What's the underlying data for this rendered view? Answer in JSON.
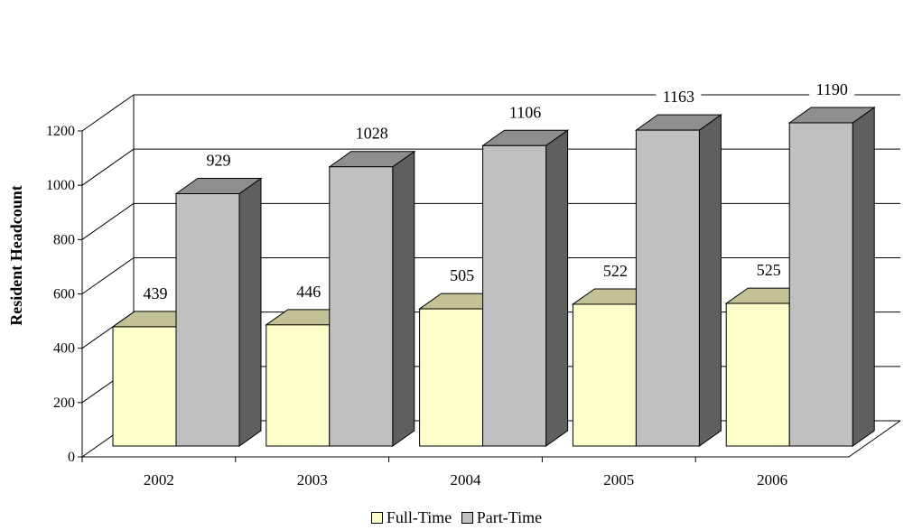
{
  "chart_data": {
    "type": "bar",
    "three_d": true,
    "categories": [
      "2002",
      "2003",
      "2004",
      "2005",
      "2006"
    ],
    "series": [
      {
        "name": "Full-Time",
        "values": [
          439,
          446,
          505,
          522,
          525
        ],
        "color": "#FFFFCC",
        "top_color": "#C2C296"
      },
      {
        "name": "Part-Time",
        "values": [
          929,
          1028,
          1106,
          1163,
          1190
        ],
        "color": "#C0C0C0",
        "top_color": "#8E8E8E",
        "side_color": "#5F5F5F"
      }
    ],
    "ylabel": "Resident Headcount",
    "xlabel": "",
    "ylim": [
      0,
      1200
    ],
    "yticks": [
      "0",
      "200",
      "400",
      "600",
      "800",
      "1000",
      "1200"
    ],
    "grid": true,
    "legend": "bottom"
  }
}
